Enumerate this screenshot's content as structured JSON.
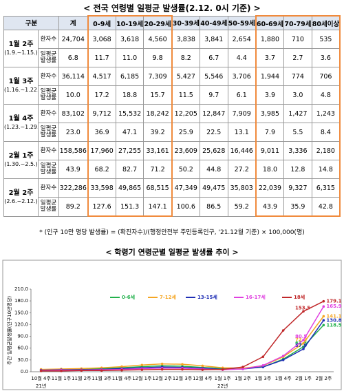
{
  "table": {
    "title": "< 전국 연령별 일평균 발생률(2.12. 0시 기준) >",
    "header": [
      "구분",
      "계",
      "0-9세",
      "10-19세",
      "20-29세",
      "30-39세",
      "40-49세",
      "50-59세",
      "60-69세",
      "70-79세",
      "80세이상"
    ],
    "rows": [
      {
        "period": "1월 2주",
        "range": "(1.9.~1.15.)",
        "cases_label": "환자수",
        "cases": [
          "24,704",
          "3,068",
          "3,618",
          "4,560",
          "3,838",
          "3,841",
          "2,654",
          "1,880",
          "710",
          "535"
        ],
        "rate_label": "일평균 발생률",
        "rates": [
          "6.8",
          "11.7",
          "11.0",
          "9.8",
          "8.2",
          "6.7",
          "4.4",
          "3.7",
          "2.7",
          "3.6"
        ]
      },
      {
        "period": "1월 3주",
        "range": "(1.16.~1.22.)",
        "cases_label": "환자수",
        "cases": [
          "36,114",
          "4,517",
          "6,185",
          "7,309",
          "5,427",
          "5,546",
          "3,706",
          "1,944",
          "774",
          "706"
        ],
        "rate_label": "일평균 발생률",
        "rates": [
          "10.0",
          "17.2",
          "18.8",
          "15.7",
          "11.5",
          "9.7",
          "6.1",
          "3.9",
          "3.0",
          "4.8"
        ]
      },
      {
        "period": "1월 4주",
        "range": "(1.23.~1.29.)",
        "cases_label": "환자수",
        "cases": [
          "83,102",
          "9,712",
          "15,532",
          "18,242",
          "12,205",
          "12,847",
          "7,909",
          "3,985",
          "1,427",
          "1,243"
        ],
        "rate_label": "일평균 발생률",
        "rates": [
          "23.0",
          "36.9",
          "47.1",
          "39.2",
          "25.9",
          "22.5",
          "13.1",
          "7.9",
          "5.5",
          "8.4"
        ]
      },
      {
        "period": "2월 1주",
        "range": "(1.30.~2.5.)",
        "cases_label": "환자수",
        "cases": [
          "158,586",
          "17,960",
          "27,255",
          "33,161",
          "23,609",
          "25,628",
          "16,446",
          "9,011",
          "3,336",
          "2,180"
        ],
        "rate_label": "일평균 발생률",
        "rates": [
          "43.9",
          "68.2",
          "82.7",
          "71.2",
          "50.2",
          "44.8",
          "27.2",
          "18.0",
          "12.8",
          "14.8"
        ]
      },
      {
        "period": "2월 2주",
        "range": "(2.6.~2.12.)",
        "cases_label": "환자수",
        "cases": [
          "322,286",
          "33,598",
          "49,865",
          "68,515",
          "47,349",
          "49,475",
          "35,803",
          "22,039",
          "9,327",
          "6,315"
        ],
        "rate_label": "일평균 발생률",
        "rates": [
          "89.2",
          "127.6",
          "151.3",
          "147.1",
          "100.6",
          "86.5",
          "59.2",
          "43.9",
          "35.9",
          "42.8"
        ]
      }
    ],
    "footnote": "* (인구 10만 명당 발생률) = (확진자수)/(행정안전부 주민등록인구, '21.12월 기준) × 100,000(명)"
  },
  "chart_data": {
    "type": "line",
    "title": "< 학령기 연령군별 일평균 발생률 추이 >",
    "y_label": "주간 일평균발생률(인구10만명당)",
    "categories": [
      "10월 4주",
      "11월 1주",
      "11월 2주",
      "11월 3주",
      "11월 4주",
      "12월 1주",
      "12월 2주",
      "12월 3주",
      "12월 4주",
      "1월 1주",
      "1월 2주",
      "1월 3주",
      "1월 4주",
      "2월 1주",
      "2월 2주"
    ],
    "year_labels": [
      "21년",
      "22년"
    ],
    "ylim": [
      0,
      210
    ],
    "yticks": [
      {
        "value": 0,
        "label": "0.0"
      },
      {
        "value": 30,
        "label": "30.0"
      },
      {
        "value": 60,
        "label": "60.0"
      },
      {
        "value": 90,
        "label": "90.0"
      },
      {
        "value": 120,
        "label": "120.0"
      },
      {
        "value": 150,
        "label": "150.0"
      },
      {
        "value": 180,
        "label": "180.0"
      },
      {
        "value": 210,
        "label": "210.0"
      }
    ],
    "series": [
      {
        "name": "0-6세",
        "color": "#22b14c",
        "values": [
          5,
          6,
          6,
          8,
          10,
          13,
          15,
          14,
          11,
          8,
          8,
          12,
          32,
          63.5,
          118.5
        ]
      },
      {
        "name": "7-12세",
        "color": "#f5a623",
        "values": [
          6,
          7,
          8,
          10,
          13,
          17,
          20,
          19,
          15,
          10,
          9,
          15,
          38,
          72.2,
          141.1
        ]
      },
      {
        "name": "13-15세",
        "color": "#1f2fb5",
        "values": [
          4,
          5,
          5,
          6,
          8,
          10,
          12,
          11,
          9,
          6,
          7,
          12,
          30,
          57.9,
          130.8
        ]
      },
      {
        "name": "16-17세",
        "color": "#e040e0",
        "values": [
          3,
          4,
          4,
          5,
          6,
          8,
          9,
          9,
          7,
          5,
          7,
          16,
          40,
          80.5,
          165.9
        ]
      },
      {
        "name": "18세",
        "color": "#c0282a",
        "values": [
          2,
          2,
          3,
          3,
          4,
          5,
          6,
          6,
          5,
          6,
          12,
          38,
          105,
          153.5,
          179.1
        ]
      }
    ]
  }
}
